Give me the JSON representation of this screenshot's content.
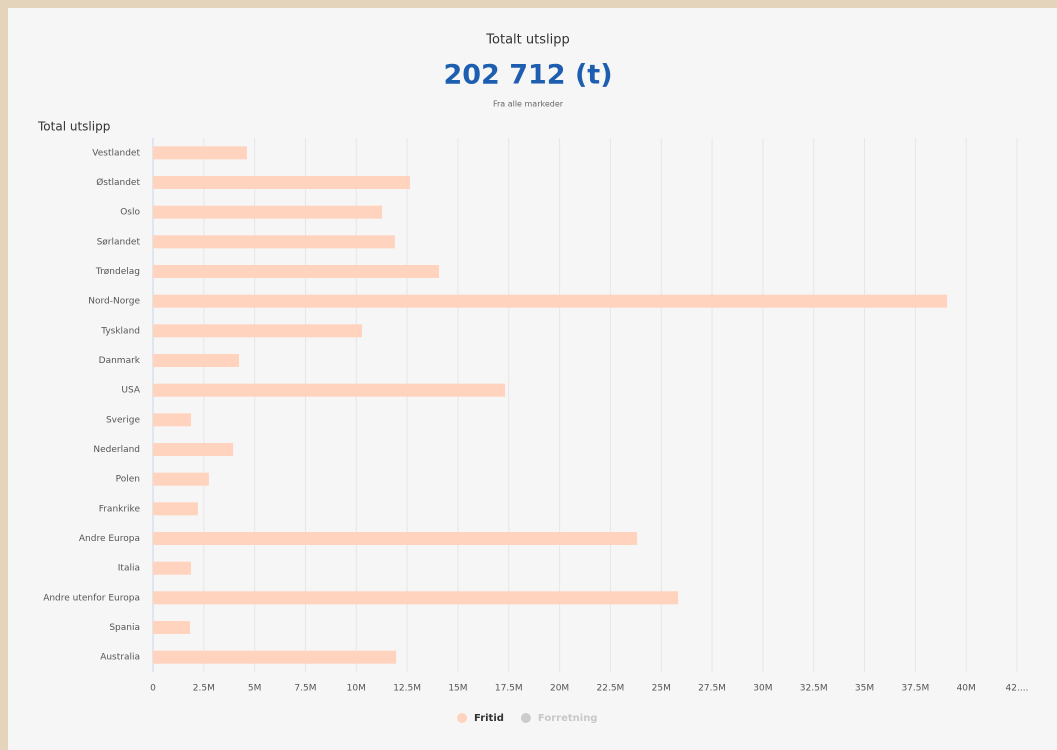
{
  "header": {
    "title": "Totalt utslipp",
    "total": "202 712 (t)",
    "subtitle": "Fra alle markeder"
  },
  "chart_data": {
    "type": "hbar",
    "title": "Total utslipp",
    "categories": [
      "Vestlandet",
      "Østlandet",
      "Oslo",
      "Sørlandet",
      "Trøndelag",
      "Nord-Norge",
      "Tyskland",
      "Danmark",
      "USA",
      "Sverige",
      "Nederland",
      "Polen",
      "Frankrike",
      "Andre Europa",
      "Italia",
      "Andre utenfor Europa",
      "Spania",
      "Australia"
    ],
    "series": [
      {
        "name": "Fritid",
        "color": "#ffd3bd",
        "visible": true,
        "values": [
          4620000,
          12640000,
          11270000,
          11900000,
          14070000,
          39060000,
          10280000,
          4230000,
          17320000,
          1870000,
          3940000,
          2750000,
          2210000,
          23810000,
          1870000,
          25830000,
          1820000,
          11960000
        ]
      },
      {
        "name": "Forretning",
        "color": "#cccccc",
        "visible": false,
        "values": [
          null,
          null,
          null,
          null,
          null,
          null,
          null,
          null,
          null,
          null,
          null,
          null,
          null,
          null,
          null,
          null,
          null,
          null
        ]
      }
    ],
    "xlim": [
      0,
      42500000
    ],
    "xticks": [
      0,
      {
        "value": 2500000,
        "label": "2.5M"
      },
      {
        "value": 5000000,
        "label": "5M"
      },
      {
        "value": 7500000,
        "label": "7.5M"
      },
      {
        "value": 10000000,
        "label": "10M"
      },
      {
        "value": 12500000,
        "label": "12.5M"
      },
      {
        "value": 15000000,
        "label": "15M"
      },
      {
        "value": 17500000,
        "label": "17.5M"
      },
      {
        "value": 20000000,
        "label": "20M"
      },
      {
        "value": 22500000,
        "label": "22.5M"
      },
      {
        "value": 25000000,
        "label": "25M"
      },
      {
        "value": 27500000,
        "label": "27.5M"
      },
      {
        "value": 30000000,
        "label": "30M"
      },
      {
        "value": 32500000,
        "label": "32.5M"
      },
      {
        "value": 35000000,
        "label": "35M"
      },
      {
        "value": 37500000,
        "label": "37.5M"
      },
      {
        "value": 40000000,
        "label": "40M"
      },
      {
        "value": 42500000,
        "label": "42...."
      }
    ],
    "grid": true,
    "legend": "bottom"
  }
}
